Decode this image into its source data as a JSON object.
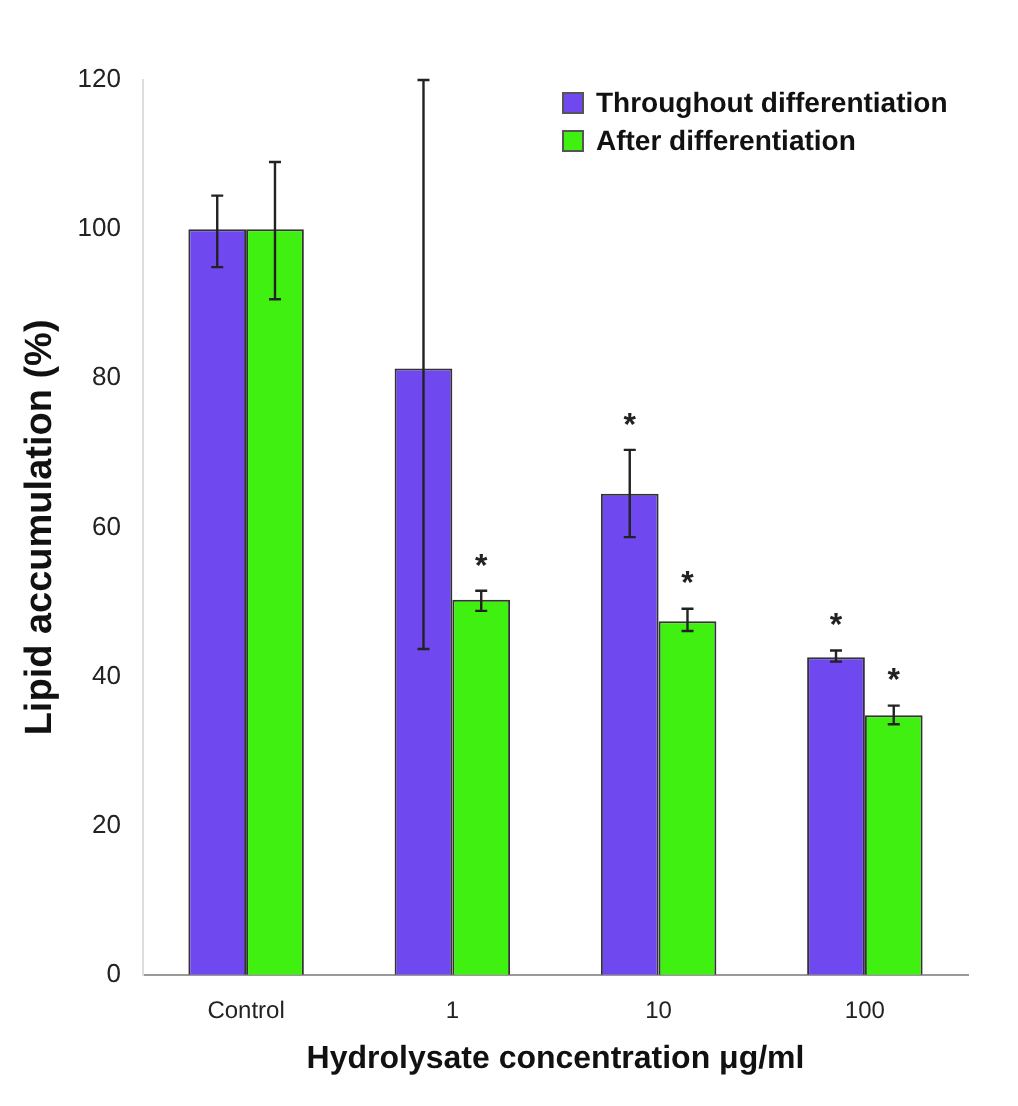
{
  "chart_data": {
    "type": "bar",
    "xlabel": "Hydrolysate concentration μg/ml",
    "ylabel": "Lipid accumulation (%)",
    "categories": [
      "Control",
      "1",
      "10",
      "100"
    ],
    "series": [
      {
        "name": "Throughout differentiation",
        "color": "#7048f0",
        "values": [
          100,
          81.3,
          64.5,
          42.6
        ],
        "errors": [
          [
            94.9,
            104.5
          ],
          [
            43.7,
            120
          ],
          [
            58.7,
            70.4
          ],
          [
            42,
            43.5
          ]
        ]
      },
      {
        "name": "After differentiation",
        "color": "#40f010",
        "values": [
          100,
          50.3,
          47.4,
          34.8
        ],
        "errors": [
          [
            90.6,
            109
          ],
          [
            48.8,
            51.5
          ],
          [
            46.1,
            49.1
          ],
          [
            33.6,
            36.1
          ]
        ]
      }
    ],
    "ylim": [
      0,
      120
    ],
    "yticks": [
      0,
      20,
      40,
      60,
      80,
      100,
      120
    ],
    "grid": false,
    "legend": "top right",
    "annotations": [
      {
        "text": "*",
        "x": "1",
        "y": 50.3
      },
      {
        "text": "*",
        "x": "10",
        "y": 64.5
      },
      {
        "text": "*",
        "x": "10",
        "y": 47.4
      },
      {
        "text": "*",
        "x": "100",
        "y": 42.6
      },
      {
        "text": "*",
        "x": "100",
        "y": 34.8
      }
    ]
  }
}
